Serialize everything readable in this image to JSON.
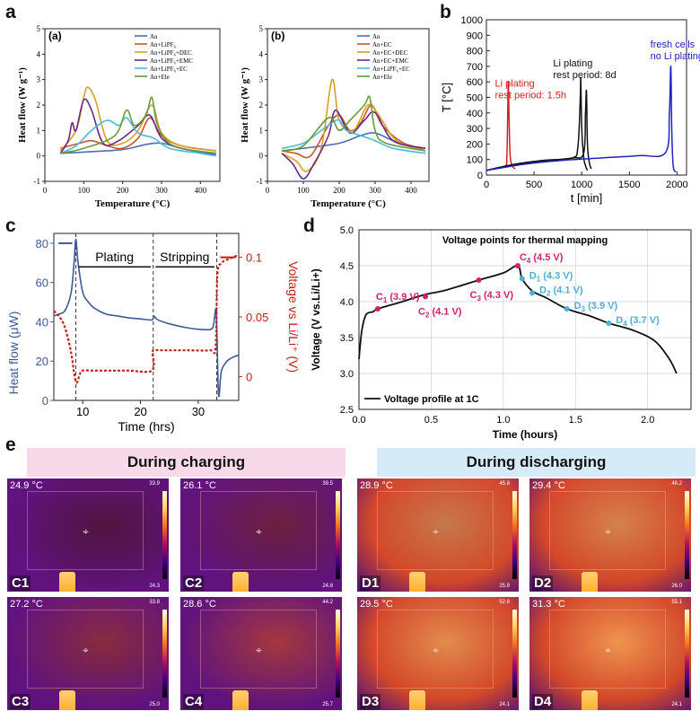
{
  "panels": {
    "a": "a",
    "b": "b",
    "c": "c",
    "d": "d",
    "e": "e"
  },
  "chart_data": [
    {
      "id": "a-left",
      "type": "line",
      "sublabel": "(a)",
      "xlabel": "Temperature (°C)",
      "ylabel": "Heat flow (W g⁻¹)",
      "xlim": [
        0,
        450
      ],
      "ylim": [
        -1,
        5
      ],
      "xticks": [
        0,
        100,
        200,
        300,
        400
      ],
      "yticks": [
        -1,
        0,
        1,
        2,
        3,
        4,
        5
      ],
      "legend": [
        "An",
        "An+LiPF₆",
        "An+LiPF₆+DEC",
        "An+LiPF₆+EMC",
        "An+LiPF₆+EC",
        "An+Ele"
      ],
      "colors": [
        "#4a6fb5",
        "#c8542a",
        "#d8a020",
        "#6a2a8a",
        "#4bbbd8",
        "#6a9a3a"
      ],
      "series": [
        {
          "name": "An",
          "x": [
            40,
            100,
            200,
            260,
            300,
            350,
            400,
            440
          ],
          "y": [
            0.1,
            0.15,
            0.25,
            0.45,
            0.5,
            0.3,
            0.15,
            0.05
          ]
        },
        {
          "name": "An+LiPF₆",
          "x": [
            40,
            90,
            120,
            160,
            200,
            240,
            270,
            300,
            350,
            440
          ],
          "y": [
            0.3,
            0.5,
            0.6,
            0.4,
            0.3,
            0.7,
            1.5,
            0.8,
            0.4,
            0.2
          ]
        },
        {
          "name": "An+LiPF₆+DEC",
          "x": [
            40,
            80,
            100,
            110,
            130,
            160,
            200,
            240,
            275,
            300,
            350,
            440
          ],
          "y": [
            0.2,
            1.0,
            2.3,
            2.7,
            2.2,
            0.6,
            0.5,
            1.0,
            2.0,
            0.9,
            0.4,
            0.2
          ]
        },
        {
          "name": "An+LiPF₆+EMC",
          "x": [
            40,
            60,
            70,
            80,
            100,
            120,
            150,
            190,
            240,
            270,
            300,
            350,
            440
          ],
          "y": [
            0.1,
            0.6,
            1.3,
            1.0,
            2.2,
            1.8,
            0.5,
            0.6,
            1.2,
            1.6,
            0.7,
            0.3,
            0.1
          ]
        },
        {
          "name": "An+LiPF₆+EC",
          "x": [
            40,
            80,
            120,
            160,
            190,
            210,
            240,
            280,
            320,
            400,
            440
          ],
          "y": [
            0.1,
            0.4,
            1.0,
            1.4,
            1.2,
            1.5,
            0.9,
            0.7,
            0.3,
            0.1,
            0.0
          ]
        },
        {
          "name": "An+Ele",
          "x": [
            40,
            100,
            180,
            210,
            230,
            260,
            275,
            290,
            330,
            440
          ],
          "y": [
            0.1,
            0.3,
            0.8,
            1.8,
            1.2,
            1.6,
            2.3,
            1.2,
            0.4,
            0.1
          ]
        }
      ]
    },
    {
      "id": "a-right",
      "type": "line",
      "sublabel": "(b)",
      "xlabel": "Temperature (°C)",
      "ylabel": "Heat flow (W g⁻¹)",
      "xlim": [
        0,
        450
      ],
      "ylim": [
        -1,
        5
      ],
      "xticks": [
        0,
        100,
        200,
        300,
        400
      ],
      "yticks": [
        -1,
        0,
        1,
        2,
        3,
        4,
        5
      ],
      "legend": [
        "An",
        "An+EC",
        "An+EC+DEC",
        "An+EC+EMC",
        "An+LiPF₆+EC",
        "An+Ele"
      ],
      "colors": [
        "#4a6fb5",
        "#c8542a",
        "#d8a020",
        "#6a2a8a",
        "#4bbbd8",
        "#6a9a3a"
      ],
      "series": [
        {
          "name": "An",
          "x": [
            40,
            100,
            200,
            260,
            300,
            350,
            400,
            440
          ],
          "y": [
            0.2,
            0.3,
            0.5,
            0.8,
            0.9,
            0.6,
            0.4,
            0.2
          ]
        },
        {
          "name": "An+EC",
          "x": [
            40,
            80,
            120,
            170,
            200,
            230,
            260,
            290,
            320,
            380,
            440
          ],
          "y": [
            0.2,
            0.1,
            0.0,
            1.2,
            1.6,
            1.0,
            1.3,
            2.0,
            1.2,
            0.5,
            0.3
          ]
        },
        {
          "name": "An+EC+DEC",
          "x": [
            40,
            80,
            110,
            150,
            180,
            200,
            240,
            280,
            310,
            360,
            440
          ],
          "y": [
            0.1,
            -0.2,
            -0.6,
            0.3,
            3.0,
            1.4,
            1.0,
            2.0,
            1.6,
            0.6,
            0.2
          ]
        },
        {
          "name": "An+EC+EMC",
          "x": [
            40,
            70,
            100,
            130,
            170,
            190,
            230,
            270,
            300,
            350,
            440
          ],
          "y": [
            0.1,
            -0.3,
            -0.9,
            -0.3,
            0.8,
            1.8,
            0.9,
            1.4,
            1.7,
            0.6,
            0.3
          ]
        },
        {
          "name": "An+LiPF₆+EC",
          "x": [
            40,
            100,
            150,
            180,
            200,
            220,
            260,
            300,
            350,
            440
          ],
          "y": [
            0.3,
            0.5,
            1.0,
            1.3,
            1.4,
            1.0,
            0.8,
            0.6,
            0.3,
            0.1
          ]
        },
        {
          "name": "An+Ele",
          "x": [
            40,
            100,
            170,
            200,
            230,
            270,
            285,
            300,
            330,
            440
          ],
          "y": [
            0.2,
            0.4,
            1.5,
            1.0,
            1.4,
            2.0,
            2.3,
            1.0,
            0.5,
            0.2
          ]
        }
      ]
    },
    {
      "id": "b",
      "type": "line",
      "xlabel": "t [min]",
      "ylabel": "T [°C]",
      "xlim": [
        0,
        2100
      ],
      "ylim": [
        0,
        1000
      ],
      "xticks": [
        0,
        500,
        1000,
        1500,
        2000
      ],
      "yticks": [
        0,
        100,
        200,
        300,
        400,
        500,
        600,
        700,
        800,
        900,
        1000
      ],
      "annotations": [
        {
          "text": "Li plating\nrest period: 1.5h",
          "color": "#d02020"
        },
        {
          "text": "Li plating\nrest period: 8d",
          "color": "#111111"
        },
        {
          "text": "fresh cells\nno Li plating",
          "color": "#2020c0"
        }
      ],
      "series": [
        {
          "name": "",
          "color": "#d02020",
          "x": [
            0,
            100,
            200,
            215,
            225,
            230,
            240,
            250,
            270,
            300
          ],
          "y": [
            30,
            45,
            60,
            120,
            450,
            600,
            300,
            120,
            60,
            40
          ]
        },
        {
          "name": "",
          "color": "#111111",
          "x": [
            0,
            300,
            600,
            900,
            960,
            985,
            990,
            1000,
            1020,
            1040,
            1060
          ],
          "y": [
            30,
            70,
            95,
            110,
            180,
            500,
            620,
            300,
            120,
            60,
            30
          ]
        },
        {
          "name": "",
          "color": "#111111",
          "x": [
            0,
            300,
            600,
            900,
            1020,
            1040,
            1050,
            1060,
            1080,
            1100
          ],
          "y": [
            30,
            68,
            92,
            110,
            140,
            400,
            540,
            200,
            80,
            40
          ]
        },
        {
          "name": "",
          "color": "#2020c0",
          "x": [
            0,
            400,
            800,
            1200,
            1600,
            1880,
            1920,
            1935,
            1945,
            1960,
            1990
          ],
          "y": [
            30,
            70,
            95,
            110,
            125,
            145,
            400,
            700,
            300,
            60,
            20
          ]
        }
      ]
    },
    {
      "id": "c",
      "type": "line",
      "xlabel": "Time (hrs)",
      "ylabel": "Heat flow (μW)",
      "ylabel_right": "Voltage vs Li/Li⁺ (V)",
      "xlim": [
        5,
        37
      ],
      "ylim": [
        0,
        85
      ],
      "ylim_right": [
        -0.02,
        0.12
      ],
      "xticks": [
        10,
        20,
        30
      ],
      "yticks": [
        0,
        20,
        40,
        60,
        80
      ],
      "yticks_right": [
        0,
        0.05,
        0.1
      ],
      "annotations": [
        "Plating",
        "Stripping"
      ],
      "vlines": [
        8.8,
        22.2,
        33.2
      ],
      "series": [
        {
          "name": "",
          "axis": "left",
          "color": "#3d5a96",
          "x": [
            5,
            6,
            7,
            8,
            8.5,
            8.8,
            9.2,
            10,
            11,
            12,
            14,
            16,
            18,
            20,
            22,
            22.3,
            23,
            25,
            28,
            31,
            32.5,
            33.1,
            33.5,
            34,
            35,
            36,
            37
          ],
          "y": [
            43,
            44,
            46,
            55,
            70,
            82,
            70,
            55,
            50,
            47,
            44,
            43,
            42,
            41.5,
            41,
            43,
            41,
            39,
            37,
            36,
            37,
            45,
            3,
            15,
            20,
            22,
            23
          ]
        },
        {
          "name": "",
          "axis": "right",
          "color": "#c0201a",
          "x": [
            5,
            6,
            7,
            8,
            8.6,
            9,
            9.5,
            10,
            12,
            15,
            18,
            22,
            22.1,
            22.4,
            24,
            28,
            32,
            33,
            33.3,
            34,
            35,
            36,
            37
          ],
          "y": [
            0.055,
            0.05,
            0.04,
            0.02,
            0.0,
            -0.005,
            0.002,
            0.005,
            0.005,
            0.005,
            0.005,
            0.005,
            0.02,
            0.022,
            0.022,
            0.022,
            0.022,
            0.025,
            0.085,
            0.095,
            0.098,
            0.1,
            0.102
          ]
        }
      ]
    },
    {
      "id": "d",
      "type": "line",
      "title": "Voltage points for thermal mapping",
      "xlabel": "Time (hours)",
      "ylabel": "Voltage (V vs.Li/Li+)",
      "xlim": [
        0,
        2.3
      ],
      "ylim": [
        2.5,
        5.0
      ],
      "xticks": [
        0.0,
        0.5,
        1.0,
        1.5,
        2.0
      ],
      "yticks": [
        2.5,
        3.0,
        3.5,
        4.0,
        4.5,
        5.0
      ],
      "legend": [
        "Voltage profile at 1C"
      ],
      "series": [
        {
          "name": "Voltage profile at 1C",
          "x": [
            0,
            0.02,
            0.05,
            0.1,
            0.13,
            0.3,
            0.46,
            0.6,
            0.83,
            1.0,
            1.1,
            1.13,
            1.2,
            1.3,
            1.44,
            1.6,
            1.73,
            1.9,
            2.05,
            2.15,
            2.2
          ],
          "y": [
            3.2,
            3.6,
            3.82,
            3.86,
            3.9,
            4.0,
            4.1,
            4.16,
            4.3,
            4.4,
            4.5,
            4.32,
            4.15,
            4.05,
            3.9,
            3.8,
            3.7,
            3.6,
            3.45,
            3.2,
            3.0
          ]
        }
      ],
      "points": [
        {
          "label": "C",
          "sub": "1",
          "value": "(3.9 V)",
          "x": 0.13,
          "y": 3.9,
          "color": "#d0206a"
        },
        {
          "label": "C",
          "sub": "2",
          "value": "(4.1 V)",
          "x": 0.46,
          "y": 4.07,
          "color": "#d0206a"
        },
        {
          "label": "C",
          "sub": "3",
          "value": "(4.3 V)",
          "x": 0.83,
          "y": 4.3,
          "color": "#d0206a"
        },
        {
          "label": "C",
          "sub": "4",
          "value": "(4.5 V)",
          "x": 1.1,
          "y": 4.5,
          "color": "#d0206a"
        },
        {
          "label": "D",
          "sub": "1",
          "value": "(4.3 V)",
          "x": 1.13,
          "y": 4.32,
          "color": "#4ab0d8"
        },
        {
          "label": "D",
          "sub": "2",
          "value": "(4.1 V)",
          "x": 1.2,
          "y": 4.12,
          "color": "#4ab0d8"
        },
        {
          "label": "D",
          "sub": "3",
          "value": "(3.9 V)",
          "x": 1.44,
          "y": 3.9,
          "color": "#4ab0d8"
        },
        {
          "label": "D",
          "sub": "4",
          "value": "(3.7 V)",
          "x": 1.73,
          "y": 3.7,
          "color": "#4ab0d8"
        }
      ]
    }
  ],
  "e": {
    "charging_title": "During charging",
    "discharging_title": "During discharging",
    "tiles": [
      {
        "id": "C1",
        "temp": "24.9",
        "max": "33.9",
        "min": "24.3"
      },
      {
        "id": "C2",
        "temp": "26.1",
        "max": "39.5",
        "min": "24.8"
      },
      {
        "id": "C3",
        "temp": "27.2",
        "max": "33.8",
        "min": "25.0"
      },
      {
        "id": "C4",
        "temp": "28.6",
        "max": "44.2",
        "min": "25.7"
      },
      {
        "id": "D1",
        "temp": "28.9",
        "max": "45.8",
        "min": "25.9"
      },
      {
        "id": "D2",
        "temp": "29.4",
        "max": "46.2",
        "min": "26.0"
      },
      {
        "id": "D3",
        "temp": "29.5",
        "max": "52.8",
        "min": "24.1"
      },
      {
        "id": "D4",
        "temp": "31.3",
        "max": "55.1",
        "min": "24.1"
      }
    ],
    "unit": "°C"
  }
}
